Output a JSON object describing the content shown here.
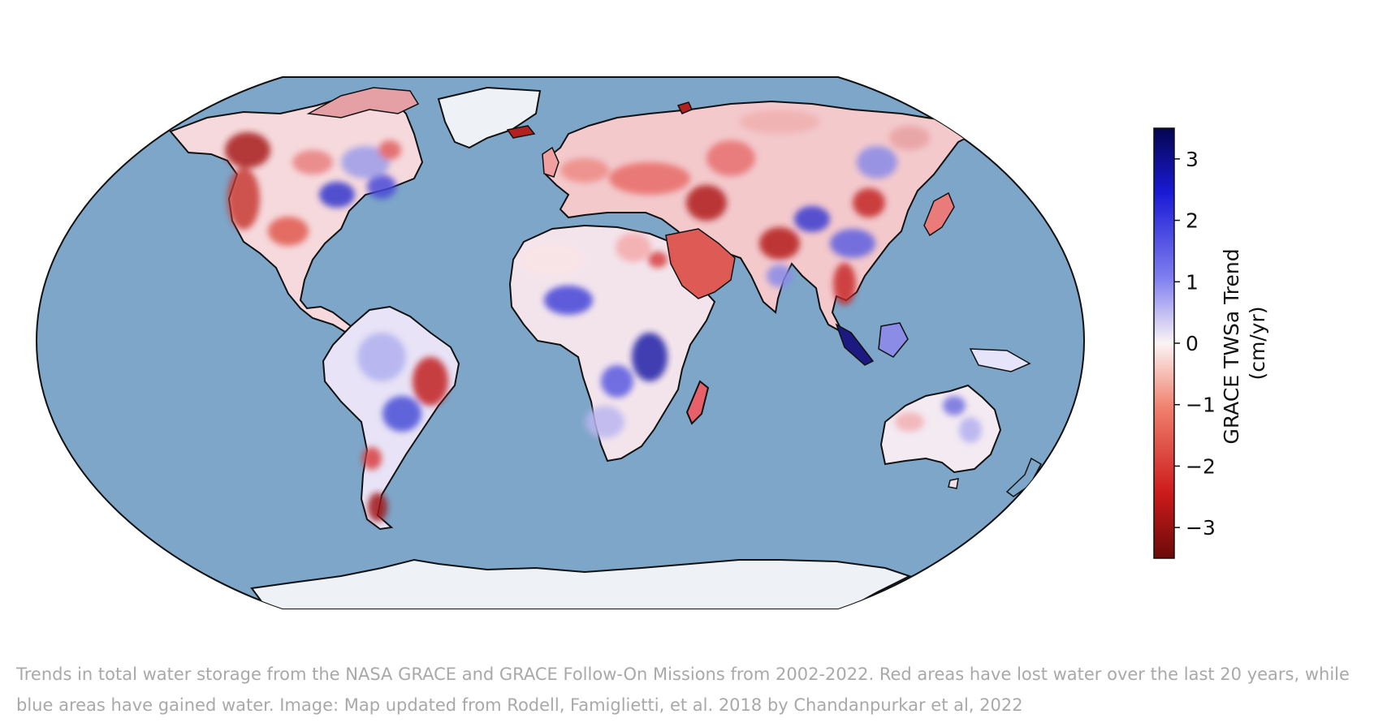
{
  "map": {
    "projection": "Robinson",
    "colorbar": {
      "title_line1": "GRACE TWSa Trend",
      "title_line2": "(cm/yr)",
      "min": -3.5,
      "max": 3.5,
      "ticks": [
        {
          "value": 3,
          "label": "3"
        },
        {
          "value": 2,
          "label": "2"
        },
        {
          "value": 1,
          "label": "1"
        },
        {
          "value": 0,
          "label": "0"
        },
        {
          "value": -1,
          "label": "−1"
        },
        {
          "value": -2,
          "label": "−2"
        },
        {
          "value": -3,
          "label": "−3"
        }
      ],
      "colormap": "seismic_r (red negative, blue positive)"
    },
    "colors": {
      "ocean": "#7ea6c8",
      "ice": "#eef2f7",
      "strong_loss": "#a01818",
      "loss": "#e05a50",
      "neutral": "#fbeeee",
      "gain": "#6d6ee6",
      "strong_gain": "#1c1aa8"
    }
  },
  "caption": {
    "text": "Trends in total water storage from the NASA GRACE and GRACE Follow-On Missions from 2002-2022. Red areas have lost water over the last 20 years, while blue areas have gained water. Image: Map updated from Rodell, Famiglietti, et al. 2018 by Chandanpurkar et al, 2022"
  }
}
